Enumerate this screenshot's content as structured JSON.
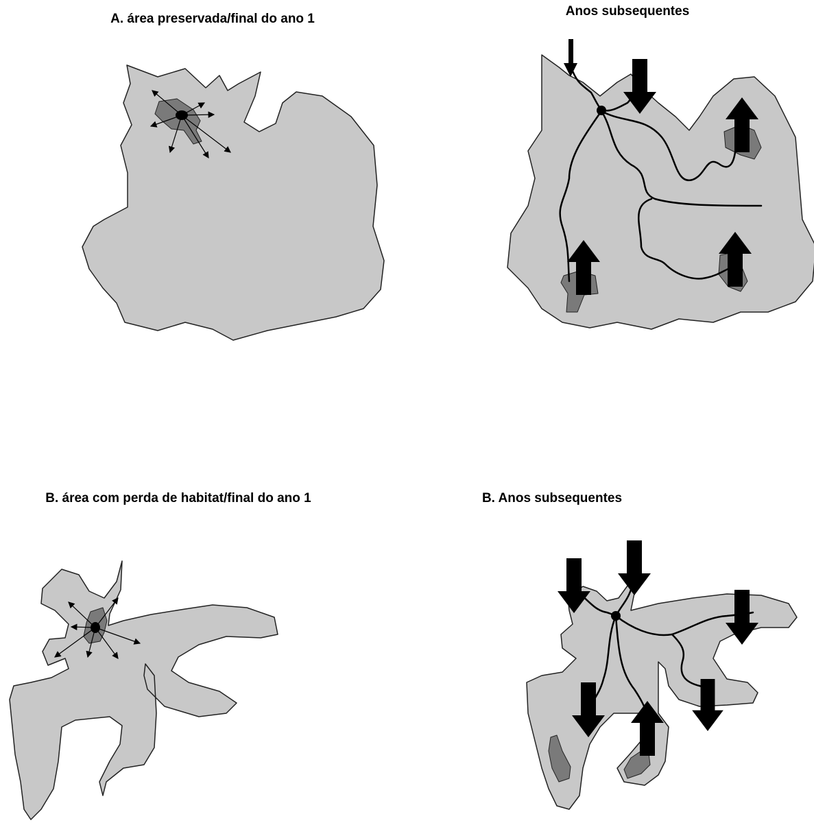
{
  "panels": [
    {
      "title": "A. área preservada/final do ano 1"
    },
    {
      "title": "Anos subsequentes"
    },
    {
      "title": "B. área com perda de habitat/final do ano 1"
    },
    {
      "title": "B. Anos subsequentes"
    }
  ]
}
